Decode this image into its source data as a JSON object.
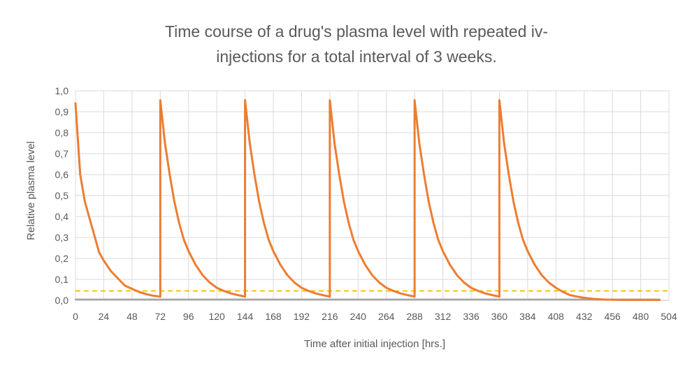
{
  "chart_data": {
    "type": "line",
    "title_lines": [
      "Time course of a drug's plasma level with repeated iv-",
      "injections for a total interval of 3 weeks."
    ],
    "xlabel": "Time after initial injection  [hrs.]",
    "ylabel": "Relative plasma level",
    "xlim": [
      0,
      504
    ],
    "ylim": [
      0,
      1.0
    ],
    "x_ticks": [
      "0",
      "24",
      "48",
      "72",
      "96",
      "120",
      "144",
      "168",
      "192",
      "216",
      "240",
      "264",
      "288",
      "312",
      "336",
      "360",
      "384",
      "408",
      "432",
      "456",
      "480",
      "504"
    ],
    "y_ticks": [
      "0,0",
      "0,1",
      "0,2",
      "0,3",
      "0,4",
      "0,5",
      "0,6",
      "0,7",
      "0,8",
      "0,9",
      "1,0"
    ],
    "grid": true,
    "series": [
      {
        "color": "#ED7D31",
        "x": [
          0,
          4,
          8,
          12,
          16,
          20,
          24,
          30,
          36,
          42,
          48,
          54,
          60,
          66,
          72,
          72,
          76,
          80,
          84,
          88,
          92,
          96,
          102,
          108,
          114,
          120,
          126,
          132,
          138,
          144,
          144,
          148,
          152,
          156,
          160,
          164,
          168,
          174,
          180,
          186,
          192,
          198,
          204,
          210,
          216,
          216,
          220,
          224,
          228,
          232,
          236,
          240,
          246,
          252,
          258,
          264,
          270,
          276,
          282,
          288,
          288,
          292,
          296,
          300,
          304,
          308,
          312,
          318,
          324,
          330,
          336,
          342,
          348,
          354,
          360,
          360,
          364,
          368,
          372,
          376,
          380,
          384,
          390,
          396,
          402,
          408,
          414,
          420,
          426,
          432,
          440,
          448,
          456,
          464,
          472,
          480,
          488,
          496
        ],
        "y": [
          0.94,
          0.6,
          0.47,
          0.39,
          0.31,
          0.23,
          0.19,
          0.14,
          0.105,
          0.07,
          0.055,
          0.04,
          0.03,
          0.022,
          0.018,
          0.955,
          0.75,
          0.6,
          0.47,
          0.37,
          0.29,
          0.235,
          0.17,
          0.12,
          0.085,
          0.06,
          0.045,
          0.033,
          0.025,
          0.018,
          0.955,
          0.75,
          0.6,
          0.47,
          0.37,
          0.29,
          0.235,
          0.17,
          0.12,
          0.085,
          0.06,
          0.045,
          0.033,
          0.025,
          0.018,
          0.955,
          0.75,
          0.6,
          0.47,
          0.37,
          0.29,
          0.235,
          0.17,
          0.12,
          0.085,
          0.06,
          0.045,
          0.033,
          0.025,
          0.018,
          0.955,
          0.75,
          0.6,
          0.47,
          0.37,
          0.29,
          0.235,
          0.17,
          0.12,
          0.085,
          0.06,
          0.045,
          0.033,
          0.025,
          0.018,
          0.955,
          0.75,
          0.6,
          0.47,
          0.37,
          0.29,
          0.235,
          0.17,
          0.12,
          0.085,
          0.06,
          0.04,
          0.025,
          0.018,
          0.012,
          0.007,
          0.004,
          0.003,
          0.002,
          0.002,
          0.002,
          0.002,
          0.002
        ]
      },
      {
        "color": "#A5A5A5",
        "x": [
          0,
          24,
          72,
          96,
          144,
          168,
          216,
          240,
          288,
          312,
          360,
          384,
          408,
          432,
          456,
          480,
          496
        ],
        "y": [
          0.004,
          0.004,
          0.004,
          0.004,
          0.004,
          0.004,
          0.004,
          0.004,
          0.004,
          0.004,
          0.004,
          0.004,
          0.004,
          0.004,
          0.004,
          0.004,
          0.004
        ]
      }
    ],
    "reference_line": {
      "y": 0.045,
      "color": "#FFC000",
      "style": "dashed"
    }
  }
}
